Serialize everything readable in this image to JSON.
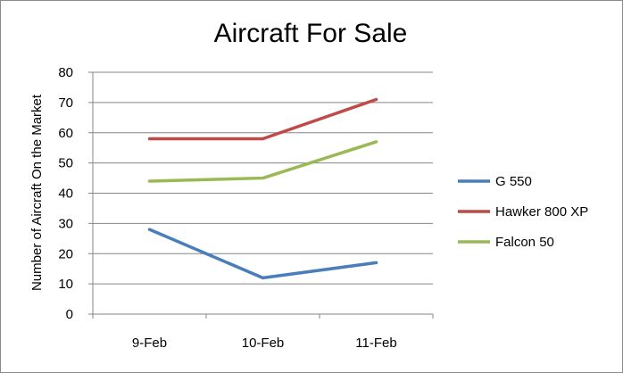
{
  "chart_data": {
    "type": "line",
    "title": "Aircraft  For Sale",
    "xlabel": "",
    "ylabel": "Number of Aircraft On the Market",
    "categories": [
      "9-Feb",
      "10-Feb",
      "11-Feb"
    ],
    "ylim": [
      0,
      80
    ],
    "yticks": [
      0,
      10,
      20,
      30,
      40,
      50,
      60,
      70,
      80
    ],
    "grid": true,
    "legend_position": "right",
    "series": [
      {
        "name": "G 550",
        "color": "#4a7ebb",
        "values": [
          28,
          12,
          17
        ]
      },
      {
        "name": "Hawker 800 XP",
        "color": "#be4b48",
        "values": [
          58,
          58,
          71
        ]
      },
      {
        "name": "Falcon 50",
        "color": "#98b954",
        "values": [
          44,
          45,
          57
        ]
      }
    ]
  }
}
